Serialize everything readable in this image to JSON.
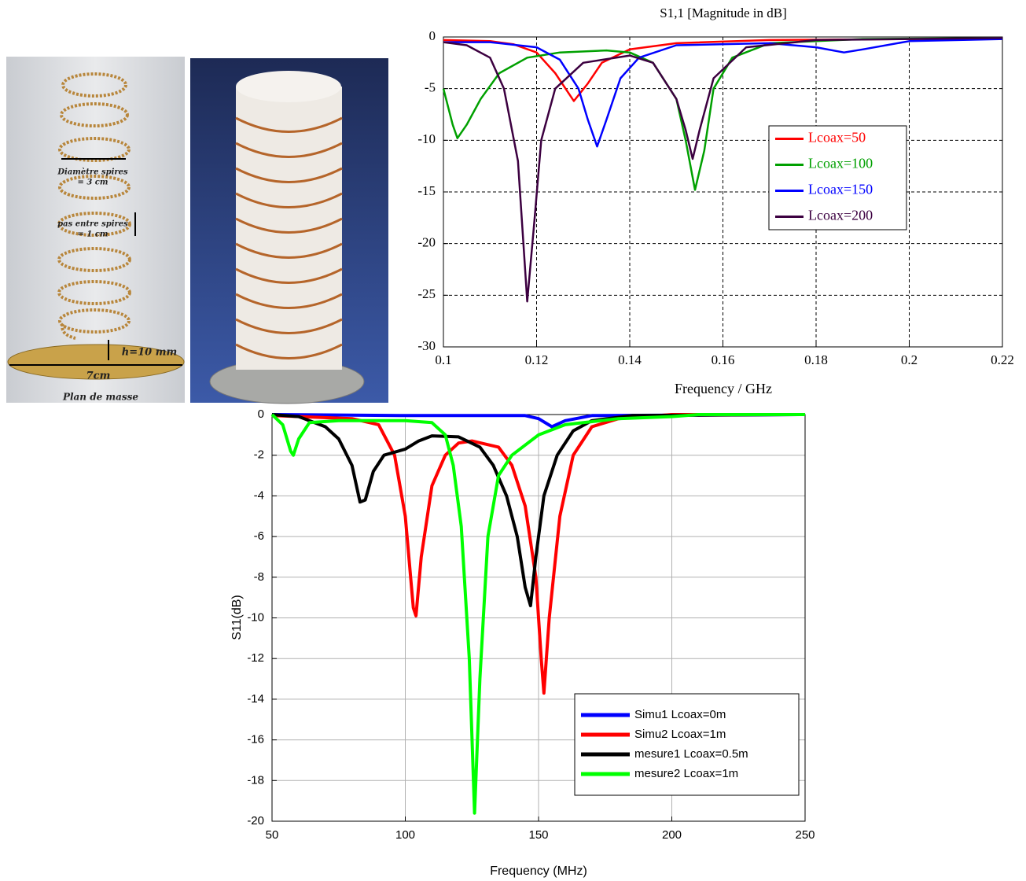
{
  "diagram": {
    "labels": [
      "Diamètre spires",
      "= 3 cm",
      "pas entre spires",
      "= 1 cm",
      "h=10 mm",
      "7cm",
      "Plan de masse"
    ]
  },
  "chart_data": [
    {
      "type": "line",
      "title": "S1,1 [Magnitude in dB]",
      "x_label": "Frequency / GHz",
      "xlim": [
        0.1,
        0.22
      ],
      "xticks": [
        0.1,
        0.12,
        0.14,
        0.16,
        0.18,
        0.2,
        0.22
      ],
      "ylim": [
        -30,
        0
      ],
      "yticks": [
        0,
        -5,
        -10,
        -15,
        -20,
        -25,
        -30
      ],
      "grid": true,
      "legend": "upper right",
      "series": [
        {
          "name": "Lcoax=50",
          "color": "#ff0000",
          "x": [
            0.1,
            0.11,
            0.115,
            0.12,
            0.124,
            0.128,
            0.131,
            0.134,
            0.14,
            0.15,
            0.17,
            0.2,
            0.22
          ],
          "values": [
            -0.3,
            -0.4,
            -0.7,
            -1.5,
            -3.5,
            -6.2,
            -4.5,
            -2.5,
            -1.2,
            -0.6,
            -0.3,
            -0.2,
            -0.2
          ]
        },
        {
          "name": "Lcoax=100",
          "color": "#00a000",
          "x": [
            0.1,
            0.102,
            0.103,
            0.105,
            0.108,
            0.112,
            0.118,
            0.125,
            0.135,
            0.14,
            0.145,
            0.15,
            0.152,
            0.154,
            0.156,
            0.158,
            0.162,
            0.17,
            0.19,
            0.22
          ],
          "values": [
            -5,
            -8.5,
            -9.8,
            -8.5,
            -6,
            -3.5,
            -2,
            -1.5,
            -1.3,
            -1.5,
            -2.5,
            -6,
            -10,
            -14.8,
            -11,
            -5,
            -2,
            -0.6,
            -0.2,
            -0.1
          ]
        },
        {
          "name": "Lcoax=150",
          "color": "#0000ff",
          "x": [
            0.1,
            0.11,
            0.12,
            0.125,
            0.129,
            0.131,
            0.133,
            0.135,
            0.138,
            0.142,
            0.15,
            0.17,
            0.18,
            0.186,
            0.19,
            0.2,
            0.22
          ],
          "values": [
            -0.5,
            -0.5,
            -1,
            -2.2,
            -5,
            -8,
            -10.6,
            -8,
            -4,
            -2,
            -0.8,
            -0.6,
            -1,
            -1.5,
            -1.2,
            -0.4,
            -0.2
          ]
        },
        {
          "name": "Lcoax=200",
          "color": "#3c0040",
          "x": [
            0.1,
            0.105,
            0.11,
            0.113,
            0.116,
            0.118,
            0.1195,
            0.121,
            0.124,
            0.13,
            0.14,
            0.145,
            0.15,
            0.152,
            0.1535,
            0.155,
            0.158,
            0.165,
            0.18,
            0.22
          ],
          "values": [
            -0.5,
            -0.8,
            -2,
            -5,
            -12,
            -25.6,
            -18,
            -10,
            -5,
            -2.5,
            -1.8,
            -2.5,
            -6,
            -9,
            -11.8,
            -9,
            -4,
            -1,
            -0.3,
            -0.1
          ]
        }
      ]
    },
    {
      "type": "line",
      "x_label": "Frequency (MHz)",
      "y_label": "S11(dB)",
      "xlim": [
        50,
        250
      ],
      "xticks": [
        50,
        100,
        150,
        200,
        250
      ],
      "ylim": [
        -20,
        0
      ],
      "yticks": [
        0,
        -2,
        -4,
        -6,
        -8,
        -10,
        -12,
        -14,
        -16,
        -18,
        -20
      ],
      "grid": true,
      "legend": "lower right",
      "series": [
        {
          "name": "Simu1 Lcoax=0m",
          "color": "#0000ff",
          "x": [
            50,
            100,
            145,
            150,
            155,
            160,
            170,
            250
          ],
          "values": [
            0,
            -0.05,
            -0.05,
            -0.2,
            -0.6,
            -0.3,
            -0.05,
            0
          ]
        },
        {
          "name": "Simu2 Lcoax=1m",
          "color": "#ff0000",
          "x": [
            50,
            80,
            90,
            96,
            100,
            103,
            104,
            106,
            110,
            115,
            120,
            125,
            135,
            140,
            145,
            149,
            151,
            152,
            154,
            158,
            163,
            170,
            180,
            200,
            250
          ],
          "values": [
            -0.05,
            -0.2,
            -0.5,
            -2,
            -5,
            -9.5,
            -9.9,
            -7,
            -3.5,
            -2,
            -1.4,
            -1.3,
            -1.6,
            -2.5,
            -4.5,
            -8,
            -12,
            -13.7,
            -10,
            -5,
            -2,
            -0.6,
            -0.2,
            0,
            0
          ]
        },
        {
          "name": "mesure1 Lcoax=0.5m",
          "color": "#000000",
          "x": [
            50,
            60,
            70,
            75,
            80,
            83,
            85,
            88,
            92,
            100,
            105,
            110,
            120,
            128,
            133,
            138,
            142,
            145,
            147,
            149,
            152,
            157,
            163,
            170,
            185,
            250
          ],
          "values": [
            0,
            -0.1,
            -0.6,
            -1.2,
            -2.5,
            -4.3,
            -4.2,
            -2.8,
            -2,
            -1.7,
            -1.3,
            -1.05,
            -1.1,
            -1.6,
            -2.5,
            -4,
            -6,
            -8.5,
            -9.4,
            -7,
            -4,
            -2,
            -0.8,
            -0.3,
            -0.05,
            0
          ]
        },
        {
          "name": "mesure2 Lcoax=1m",
          "color": "#00ff00",
          "x": [
            50,
            54,
            57,
            58,
            60,
            64,
            75,
            100,
            110,
            115,
            118,
            121,
            124,
            126,
            128,
            131,
            135,
            140,
            145,
            150,
            160,
            180,
            200,
            210,
            250
          ],
          "values": [
            0,
            -0.5,
            -1.8,
            -2,
            -1.2,
            -0.4,
            -0.3,
            -0.3,
            -0.4,
            -1,
            -2.5,
            -5.5,
            -12,
            -19.6,
            -13,
            -6,
            -3,
            -2,
            -1.5,
            -1,
            -0.5,
            -0.2,
            -0.1,
            0,
            0
          ]
        }
      ]
    }
  ]
}
